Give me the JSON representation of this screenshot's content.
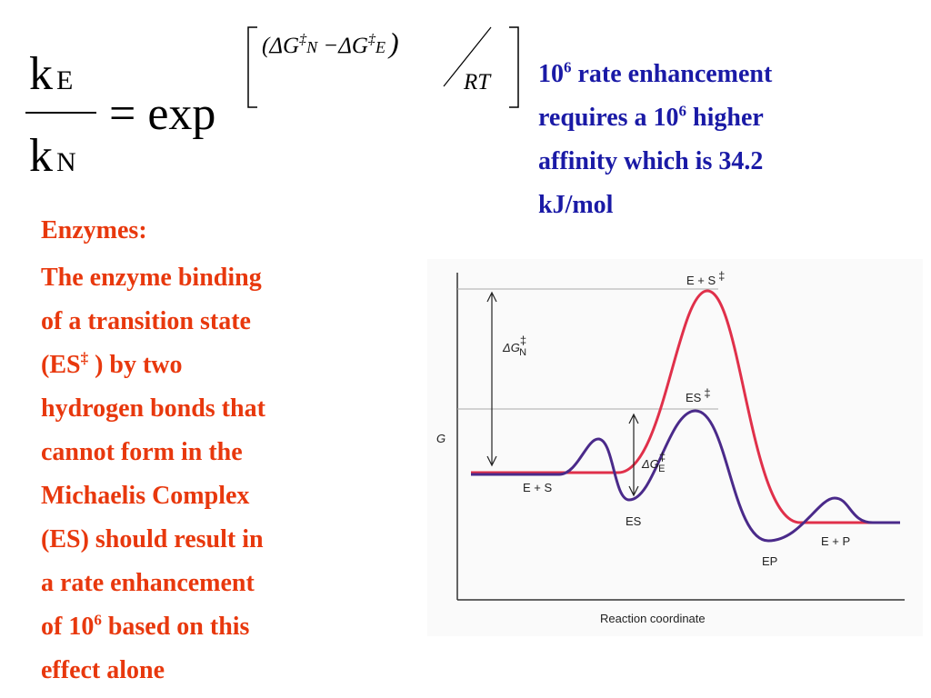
{
  "equation": {
    "lhs_top": "k",
    "lhs_top_sub": "E",
    "lhs_bottom": "k",
    "lhs_bottom_sub": "N",
    "operator": "= exp",
    "exponent_terms": [
      "(ΔG",
      "‡",
      "N",
      " −ΔG",
      "‡",
      "E",
      ")"
    ],
    "exponent_denominator": "RT"
  },
  "note": [
    "10",
    "6",
    " rate enhancement",
    "requires a 10",
    "6",
    " higher",
    "affinity which is 34.2",
    "kJ/mol"
  ],
  "body": {
    "heading": "Enzymes:",
    "lines": [
      "The enzyme binding",
      "of a transition state",
      "(ES",
      "‡",
      " ) by two",
      "hydrogen bonds that",
      "cannot form in the",
      "Michaelis Complex",
      "(ES) should result in",
      "a rate enhancement",
      "of 10",
      "6",
      " based on this",
      "effect alone"
    ]
  },
  "diagram": {
    "y_axis_label": "G",
    "x_axis_label": "Reaction coordinate",
    "uncatalyzed_ts": [
      "E + S",
      "‡"
    ],
    "catalyzed_ts": [
      "ES",
      "‡"
    ],
    "delta_g_n": [
      "ΔG",
      "‡",
      "N"
    ],
    "delta_g_e": [
      "ΔG",
      "‡",
      "E"
    ],
    "states": [
      "E + S",
      "ES",
      "EP",
      "E + P"
    ]
  }
}
